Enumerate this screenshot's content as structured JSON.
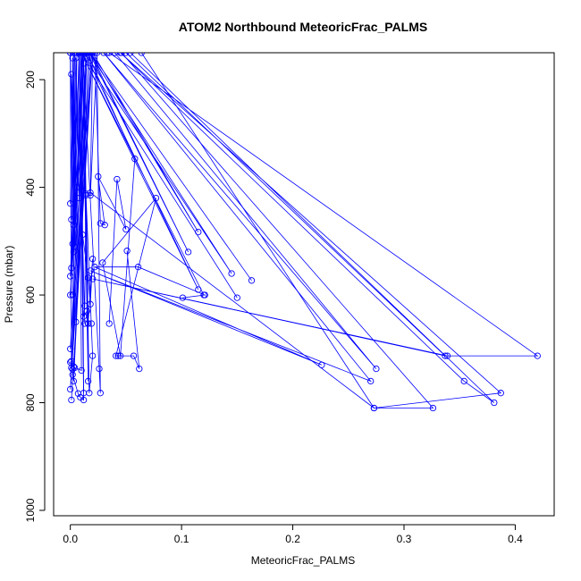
{
  "chart_data": {
    "type": "line",
    "title": "ATOM2 Northbound MeteoricFrac_PALMS",
    "xlabel": "MeteoricFrac_PALMS",
    "ylabel": "Pressure (mbar)",
    "xlim": [
      -0.015,
      0.435
    ],
    "ylim": [
      1010,
      150
    ],
    "y_reversed": true,
    "x_ticks": [
      "0.0",
      "0.1",
      "0.2",
      "0.3",
      "0.4"
    ],
    "x_tick_values": [
      0,
      0.1,
      0.2,
      0.3,
      0.4
    ],
    "y_ticks": [
      "200",
      "400",
      "600",
      "800",
      "1000"
    ],
    "y_tick_values": [
      200,
      400,
      600,
      800,
      1000
    ],
    "series_color": "#0000ff",
    "series": [
      {
        "x": [
          0.0,
          0.003,
          0.001,
          0.006,
          0.002,
          0.004,
          0.008,
          0.005,
          0.001,
          0.012,
          0.0,
          0.015,
          0.005,
          0.019,
          0.0,
          0.015
        ],
        "y": [
          150,
          470,
          190,
          400,
          160,
          510,
          420,
          160,
          550,
          170,
          600,
          160,
          650,
          150,
          700,
          160
        ]
      },
      {
        "x": [
          0.0,
          0.003,
          0.001,
          0.004,
          0.002,
          0.006,
          0.003,
          0.008,
          0.0,
          0.01,
          0.002,
          0.011,
          0.001,
          0.014,
          0.003,
          0.017,
          0.0,
          0.02,
          0.001
        ],
        "y": [
          430,
          150,
          460,
          150,
          505,
          150,
          520,
          150,
          565,
          150,
          600,
          150,
          735,
          150,
          760,
          150,
          775,
          150,
          795
        ]
      },
      {
        "x": [
          0.0,
          0.001,
          0.0,
          0.003,
          0.002,
          0.007,
          0.009,
          0.012,
          0.008,
          0.01,
          0.004,
          0.002
        ],
        "y": [
          150,
          723,
          725,
          733,
          748,
          783,
          790,
          795,
          150,
          740,
          735,
          738
        ]
      },
      {
        "x": [
          0.015,
          0.058,
          0.045,
          0.029,
          0.077,
          0.041,
          0.043,
          0.057,
          0.062,
          0.051
        ],
        "y": [
          150,
          347,
          713,
          540,
          420,
          713,
          713,
          713,
          737,
          518
        ]
      },
      {
        "x": [
          0.022,
          0.027,
          0.031,
          0.025,
          0.05,
          0.042,
          0.035
        ],
        "y": [
          150,
          467,
          470,
          380,
          478,
          385,
          653
        ]
      },
      {
        "x": [
          0.013,
          0.011,
          0.016,
          0.018,
          0.02,
          0.016,
          0.014,
          0.013,
          0.012,
          0.015,
          0.016,
          0.019
        ],
        "y": [
          653,
          488,
          568,
          617,
          533,
          653,
          415,
          620,
          640,
          630,
          653,
          653
        ]
      },
      {
        "x": [
          0.009,
          0.012,
          0.01,
          0.014,
          0.02,
          0.017,
          0.012,
          0.016,
          0.011,
          0.026,
          0.027,
          0.024,
          0.018
        ],
        "y": [
          150,
          782,
          150,
          412,
          713,
          782,
          150,
          760,
          150,
          737,
          782,
          150,
          415
        ]
      },
      {
        "x": [
          0.02,
          0.115,
          0.018,
          0.163,
          0.018,
          0.106,
          0.017,
          0.145,
          0.013,
          0.115,
          0.01,
          0.15,
          0.01,
          0.12
        ],
        "y": [
          150,
          483,
          150,
          573,
          150,
          520,
          150,
          560,
          150,
          590,
          150,
          605,
          150,
          600
        ]
      },
      {
        "x": [
          0.101,
          0.121,
          0.061,
          0.022,
          0.226,
          0.018,
          0.27,
          0.03,
          0.275,
          0.04,
          0.033
        ],
        "y": [
          605,
          600,
          548,
          548,
          730,
          555,
          760,
          150,
          737,
          150,
          150
        ]
      },
      {
        "x": [
          0.035,
          0.42,
          0.339,
          0.02,
          0.337,
          0.05,
          0.054,
          0.381,
          0.354,
          0.045,
          0.387,
          0.273,
          0.326,
          0.046,
          0.04
        ],
        "y": [
          150,
          713,
          713,
          570,
          713,
          150,
          150,
          800,
          760,
          150,
          782,
          810,
          810,
          150,
          150
        ]
      },
      {
        "x": [
          0.064,
          0.273,
          0.018,
          0.02
        ],
        "y": [
          150,
          810,
          410,
          150
        ]
      }
    ]
  }
}
